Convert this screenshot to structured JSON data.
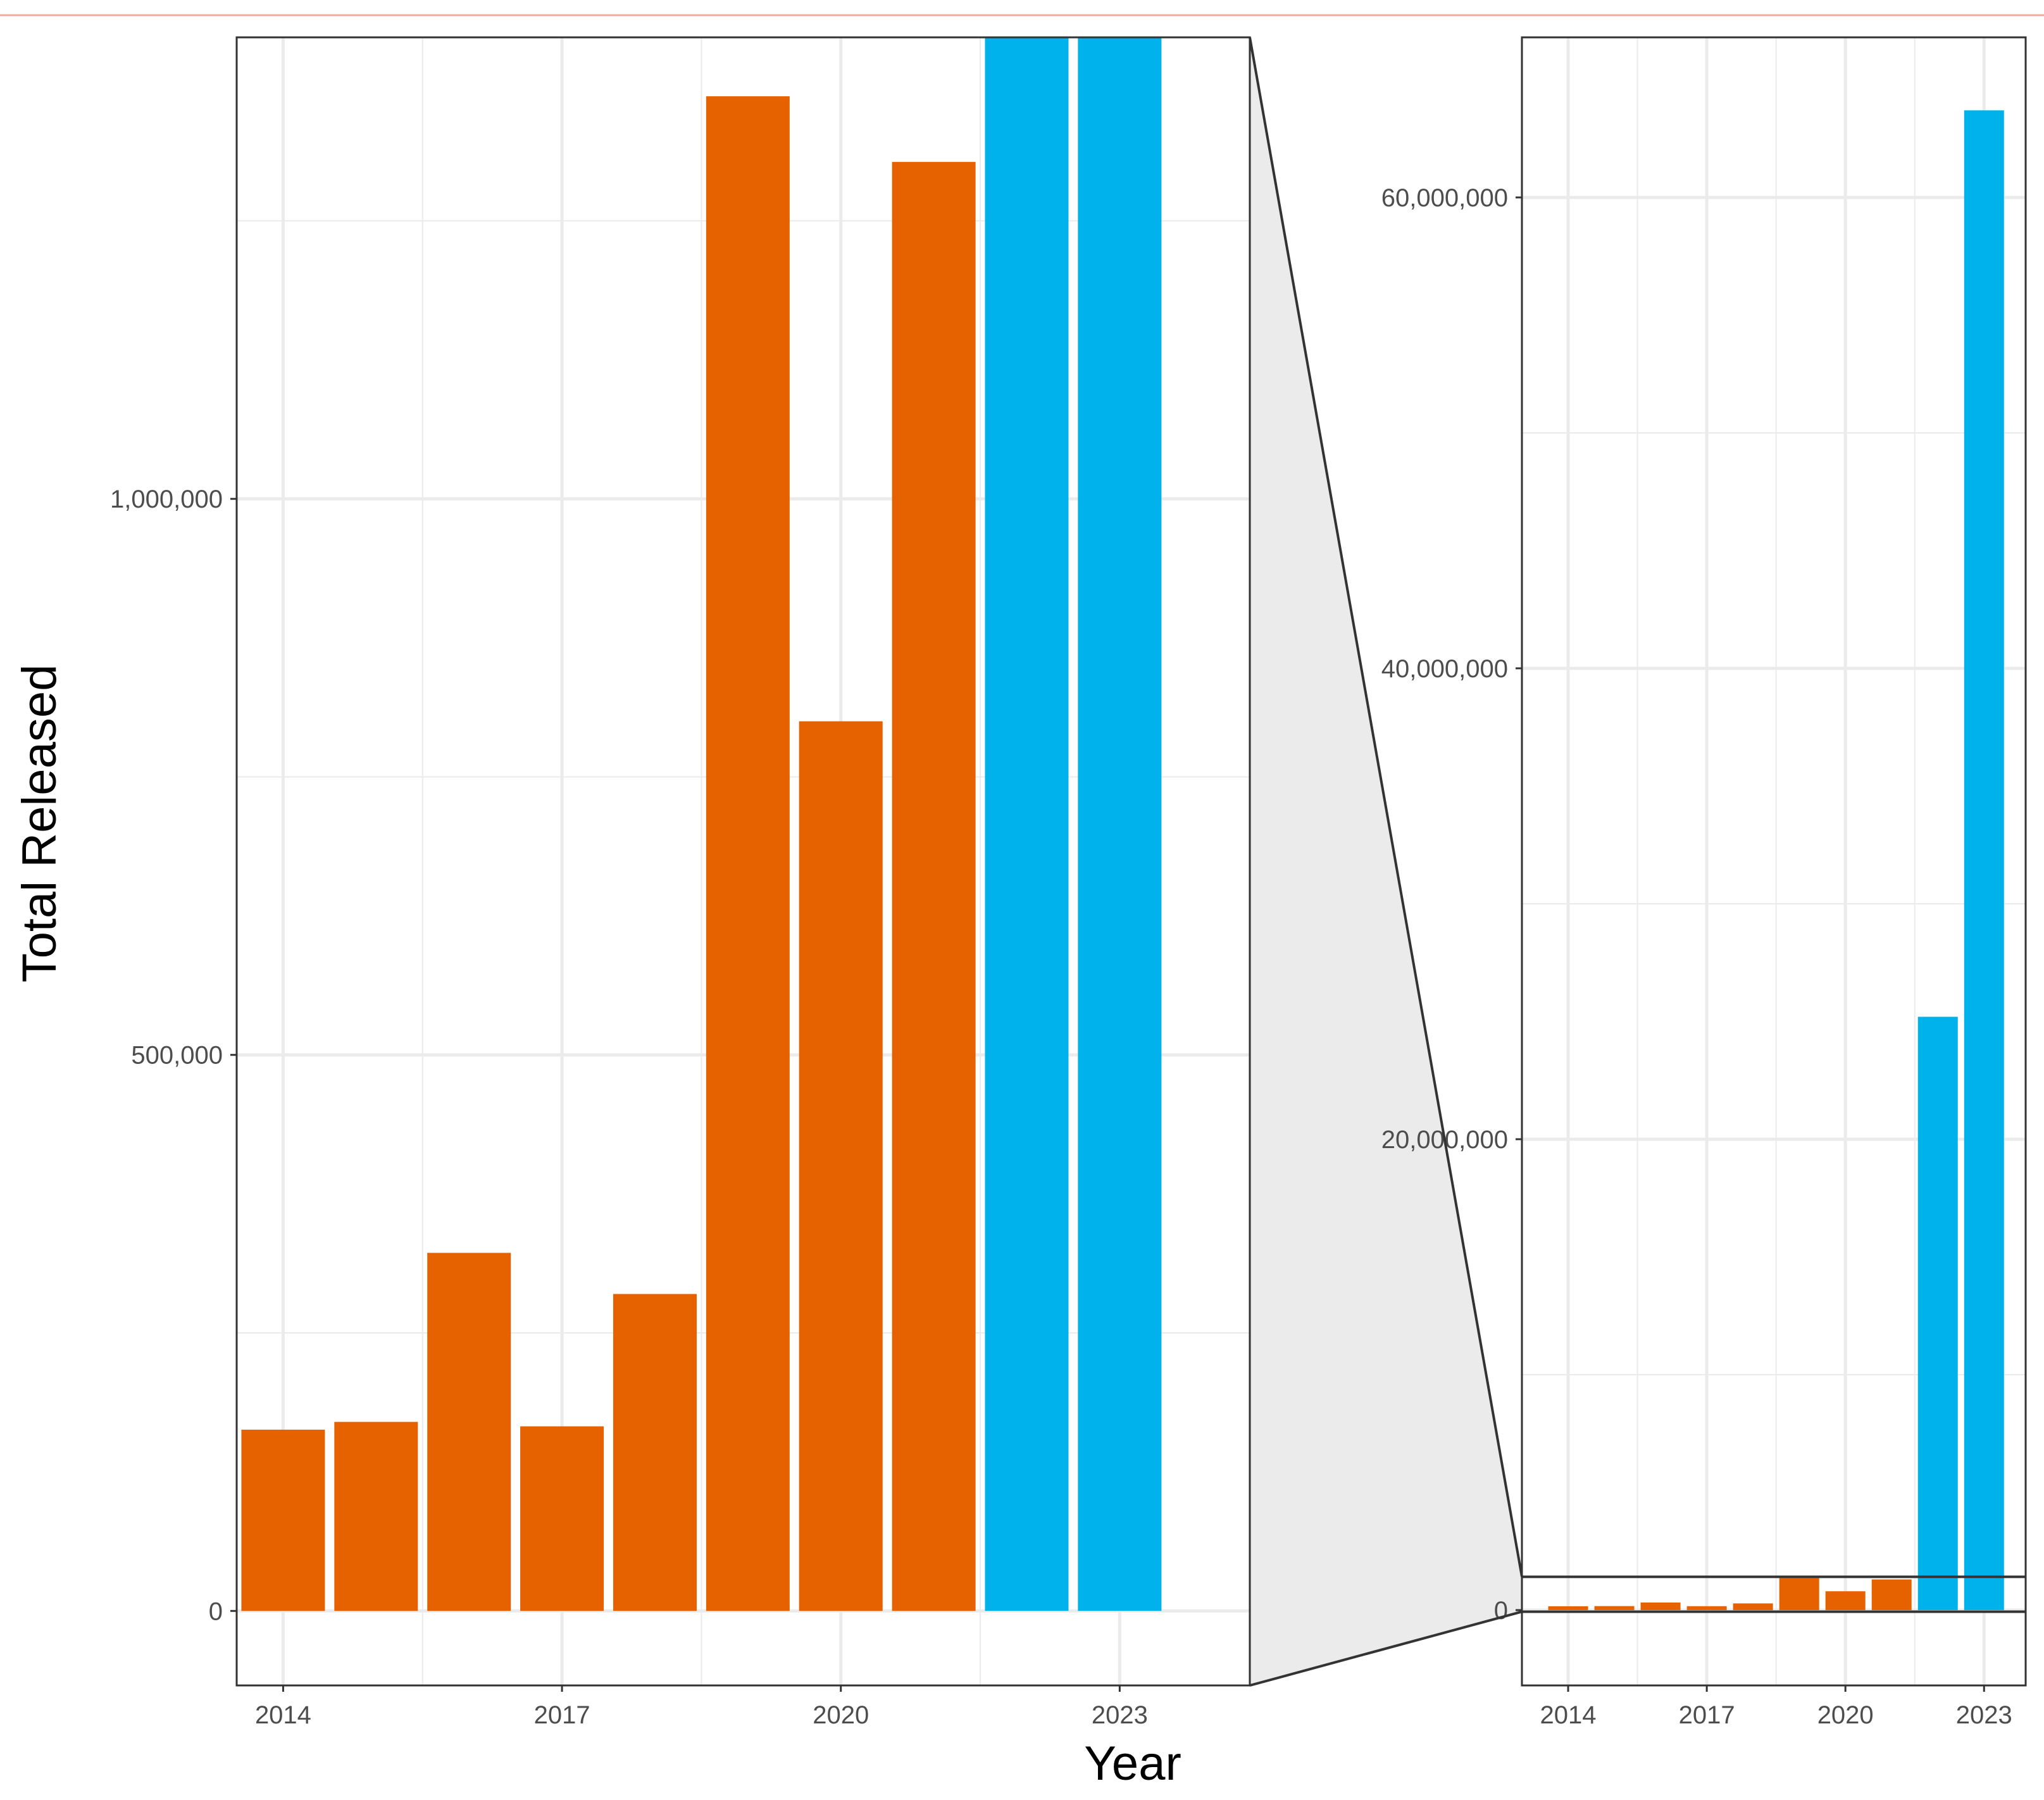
{
  "chart_data": {
    "type": "bar",
    "xlabel": "Year",
    "ylabel": "Total Released",
    "colors": {
      "reported": "#E66100",
      "highlight": "#00B2EB",
      "gridline": "#ebebeb",
      "panel_border": "#333333",
      "zoom_fill": "#ebebeb",
      "top_rule": "#f4a9a0"
    },
    "categories": [
      2014,
      2015,
      2016,
      2017,
      2018,
      2019,
      2020,
      2021,
      2022,
      2023
    ],
    "series": [
      {
        "name": "Total Released",
        "values": [
          163000,
          170000,
          322000,
          166000,
          285000,
          1362000,
          800000,
          1303000,
          25200000,
          63700000
        ],
        "groups": [
          "reported",
          "reported",
          "reported",
          "reported",
          "reported",
          "reported",
          "reported",
          "reported",
          "highlight",
          "highlight"
        ]
      }
    ],
    "panels": [
      {
        "name": "zoomed-panel",
        "xlim": [
          2013.5,
          2024.4
        ],
        "ylim": [
          -67000,
          1415000
        ],
        "x_ticks": [
          2014,
          2017,
          2020,
          2023
        ],
        "x_tick_labels": [
          "2014",
          "2017",
          "2020",
          "2023"
        ],
        "y_ticks": [
          0,
          500000,
          1000000
        ],
        "y_tick_labels": [
          "0",
          "500,000",
          "1,000,000"
        ],
        "y_minor_ticks": [
          250000,
          750000,
          1250000
        ]
      },
      {
        "name": "full-panel",
        "xlim": [
          2013.0,
          2023.9
        ],
        "ylim": [
          -3200000,
          66800000
        ],
        "x_ticks": [
          2014,
          2017,
          2020,
          2023
        ],
        "x_tick_labels": [
          "2014",
          "2017",
          "2020",
          "2023"
        ],
        "y_ticks": [
          0,
          20000000,
          40000000,
          60000000
        ],
        "y_tick_labels": [
          "0",
          "20,000,000",
          "40,000,000",
          "60,000,000"
        ],
        "y_minor_ticks": [
          10000000,
          30000000,
          50000000
        ],
        "zoom_band": [
          -67000,
          1415000
        ]
      }
    ]
  }
}
